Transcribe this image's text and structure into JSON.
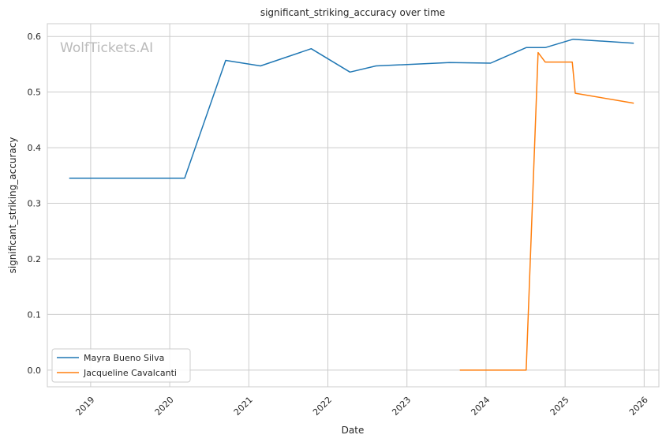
{
  "chart_data": {
    "type": "line",
    "title": "significant_striking_accuracy over time",
    "xlabel": "Date",
    "ylabel": "significant_striking_accuracy",
    "watermark": "WolfTickets.AI",
    "xlim": [
      "2018-06-15",
      "2026-03-10"
    ],
    "ylim": [
      -0.03,
      0.623
    ],
    "x_ticks": [
      "2019",
      "2020",
      "2021",
      "2022",
      "2023",
      "2024",
      "2025",
      "2026"
    ],
    "y_ticks": [
      "0.0",
      "0.1",
      "0.2",
      "0.3",
      "0.4",
      "0.5",
      "0.6"
    ],
    "grid": true,
    "legend_position": "bottom-left",
    "series": [
      {
        "name": "Mayra Bueno Silva",
        "color": "#1f77b4",
        "x": [
          "2018-09-24",
          "2020-03-10",
          "2020-09-16",
          "2021-02-24",
          "2021-10-16",
          "2022-04-13",
          "2022-08-11",
          "2023-07-16",
          "2024-01-22",
          "2024-07-05",
          "2024-10-01",
          "2025-02-07",
          "2025-11-14"
        ],
        "y": [
          0.345,
          0.345,
          0.557,
          0.547,
          0.578,
          0.536,
          0.547,
          0.553,
          0.552,
          0.58,
          0.58,
          0.595,
          0.588
        ]
      },
      {
        "name": "Jacqueline Cavalcanti",
        "color": "#ff7f0e",
        "x": [
          "2023-09-02",
          "2024-07-05",
          "2024-08-29",
          "2024-10-01",
          "2025-02-03",
          "2025-02-17",
          "2025-11-14"
        ],
        "y": [
          0.0,
          0.0,
          0.571,
          0.554,
          0.554,
          0.498,
          0.48
        ]
      }
    ]
  }
}
